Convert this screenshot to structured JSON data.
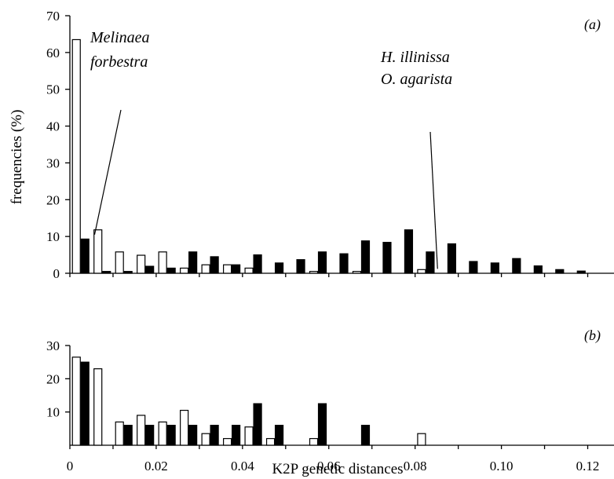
{
  "chart_data": [
    {
      "panel": "a",
      "type": "bar",
      "panel_label": "(a)",
      "ylabel": "frequencies (%)",
      "ylim": [
        0,
        70
      ],
      "yticks": [
        "0",
        "10",
        "20",
        "30",
        "40",
        "50",
        "60",
        "70"
      ],
      "grid": false,
      "series": [
        {
          "fill": "#ffffff",
          "x": [
            0.0025,
            0.0075,
            0.0125,
            0.0175,
            0.0225,
            0.0275,
            0.0325,
            0.0375,
            0.0425,
            0.0475,
            0.0525,
            0.0575,
            0.0625,
            0.0675,
            0.0725,
            0.0775,
            0.0825,
            0.0875,
            0.0925,
            0.0975,
            0.1025,
            0.1075,
            0.1125,
            0.1175,
            0.1225
          ],
          "values": [
            63.5,
            11.8,
            5.8,
            4.9,
            5.8,
            1.4,
            2.3,
            2.3,
            1.4,
            0,
            0,
            0.5,
            0,
            0.5,
            0,
            0,
            1.0,
            0,
            0,
            0,
            0,
            0,
            0,
            0,
            0
          ]
        },
        {
          "fill": "#000000",
          "x": [
            0.0025,
            0.0075,
            0.0125,
            0.0175,
            0.0225,
            0.0275,
            0.0325,
            0.0375,
            0.0425,
            0.0475,
            0.0525,
            0.0575,
            0.0625,
            0.0675,
            0.0725,
            0.0775,
            0.0825,
            0.0875,
            0.0925,
            0.0975,
            0.1025,
            0.1075,
            0.1125,
            0.1175,
            0.1225
          ],
          "values": [
            9.3,
            0.5,
            0.5,
            1.9,
            1.4,
            5.8,
            4.5,
            2.3,
            5.0,
            2.8,
            3.7,
            5.8,
            5.3,
            8.8,
            8.4,
            11.8,
            5.8,
            8.0,
            3.2,
            2.8,
            4.0,
            2.0,
            1.0,
            0.6,
            0
          ]
        }
      ],
      "annotations": [
        {
          "lines": [
            "Melinaea",
            "forbestra"
          ],
          "points_to_x": 0.005,
          "points_to_y": 10.5
        },
        {
          "lines": [
            "H. illinissa",
            "O. agarista"
          ],
          "points_to_x": 0.0852,
          "points_to_y": 1.2
        }
      ]
    },
    {
      "panel": "b",
      "type": "bar",
      "panel_label": "(b)",
      "ylim": [
        0,
        30
      ],
      "yticks": [
        "10",
        "20",
        "30"
      ],
      "xlabel": "K2P genetic distances",
      "xlim": [
        0,
        0.125
      ],
      "xticks": [
        "0",
        "0.02",
        "0.04",
        "0.06",
        "0.08",
        "0.10",
        "0.12"
      ],
      "grid": false,
      "series": [
        {
          "fill": "#ffffff",
          "x": [
            0.0025,
            0.0075,
            0.0125,
            0.0175,
            0.0225,
            0.0275,
            0.0325,
            0.0375,
            0.0425,
            0.0475,
            0.0525,
            0.0575,
            0.0625,
            0.0675,
            0.0725,
            0.0775,
            0.0825,
            0.0875
          ],
          "values": [
            26.5,
            23.0,
            7.0,
            9.0,
            7.0,
            10.5,
            3.5,
            2.0,
            5.5,
            2.0,
            0,
            2.0,
            0,
            0,
            0,
            0,
            3.5,
            0
          ]
        },
        {
          "fill": "#000000",
          "x": [
            0.0025,
            0.0075,
            0.0125,
            0.0175,
            0.0225,
            0.0275,
            0.0325,
            0.0375,
            0.0425,
            0.0475,
            0.0525,
            0.0575,
            0.0625,
            0.0675,
            0.0725,
            0.0775,
            0.0825,
            0.0875
          ],
          "values": [
            25.0,
            0,
            6.0,
            6.0,
            6.0,
            6.0,
            6.0,
            6.0,
            12.5,
            6.0,
            0,
            12.5,
            0,
            6.0,
            0,
            0,
            0,
            0
          ]
        }
      ]
    }
  ]
}
